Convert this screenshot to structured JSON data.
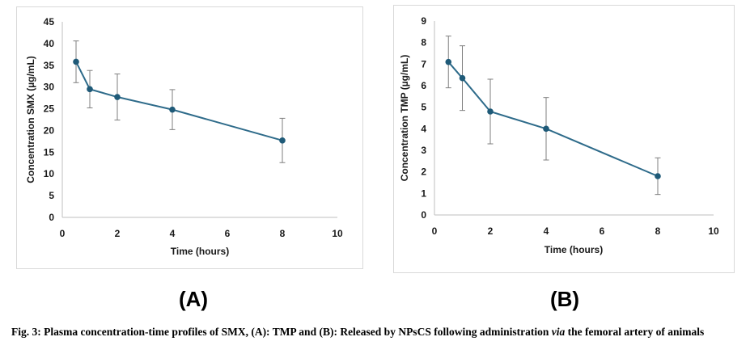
{
  "panels": [
    {
      "label": "(A)",
      "chart_data": {
        "type": "line",
        "title": "",
        "xlabel": "Time (hours)",
        "ylabel": "Concentration SMX (µg/mL)",
        "xlim": [
          0,
          10
        ],
        "ylim": [
          0,
          45
        ],
        "xticks": [
          0,
          2,
          4,
          6,
          8,
          10
        ],
        "yticks": [
          0,
          5,
          10,
          15,
          20,
          25,
          30,
          35,
          40,
          45
        ],
        "grid": false,
        "series": [
          {
            "x": [
              0.5,
              1,
              2,
              4,
              8
            ],
            "y": [
              35.8,
              29.5,
              27.7,
              24.8,
              17.7
            ],
            "error": [
              4.8,
              4.3,
              5.3,
              4.6,
              5.1
            ]
          }
        ],
        "color": "#2e6b8a"
      }
    },
    {
      "label": "(B)",
      "chart_data": {
        "type": "line",
        "title": "",
        "xlabel": "Time (hours)",
        "ylabel": "Concentration TMP (µg/mL)",
        "xlim": [
          0,
          10
        ],
        "ylim": [
          0,
          9
        ],
        "xticks": [
          0,
          2,
          4,
          6,
          8,
          10
        ],
        "yticks": [
          0,
          1,
          2,
          3,
          4,
          5,
          6,
          7,
          8,
          9
        ],
        "grid": false,
        "series": [
          {
            "x": [
              0.5,
              1,
              2,
              4,
              8
            ],
            "y": [
              7.1,
              6.35,
              4.8,
              4.0,
              1.8
            ],
            "error": [
              1.2,
              1.5,
              1.5,
              1.45,
              0.85
            ]
          }
        ],
        "color": "#2e6b8a"
      }
    }
  ],
  "caption": {
    "part1": "Fig. 3: Plasma concentration-time profiles of SMX, (A): TMP and (B): Released by NPsCS following administration ",
    "via": "via",
    "part2": " the femoral artery of animals"
  }
}
